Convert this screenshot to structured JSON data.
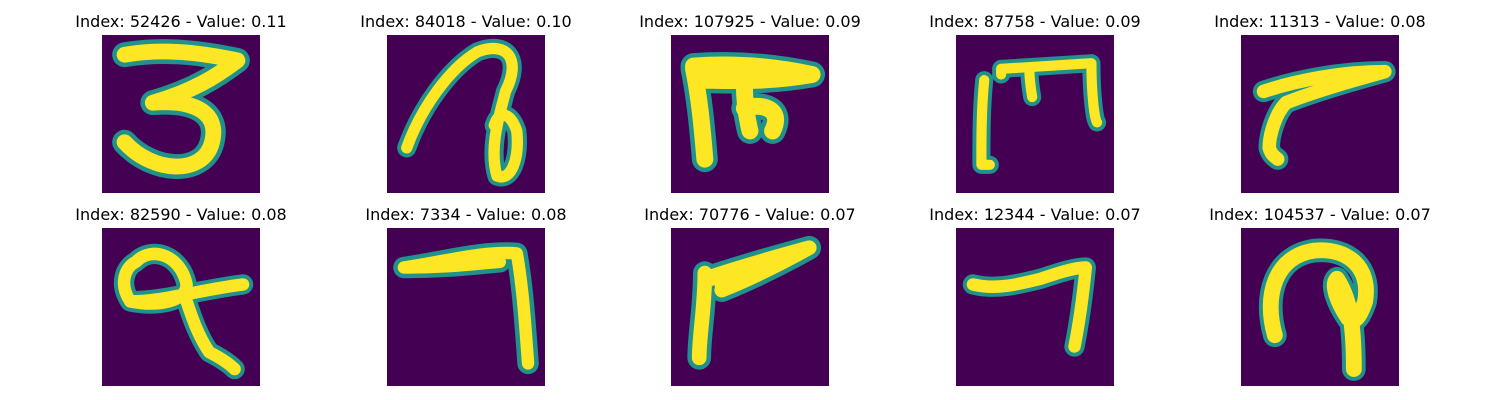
{
  "panels": [
    {
      "title": "Index: 52426 - Value: 0.11",
      "glyph": "3",
      "colors": {
        "background": "#440154",
        "edge": "#21918c",
        "stroke": "#fde725"
      }
    },
    {
      "title": "Index: 84018 - Value: 0.10",
      "glyph": "loop-arc"
    },
    {
      "title": "Index: 107925 - Value: 0.09",
      "glyph": "pi-shape"
    },
    {
      "title": "Index: 87758 - Value: 0.09",
      "glyph": "m-shape"
    },
    {
      "title": "Index: 11313 - Value: 0.08",
      "glyph": "slant-7"
    },
    {
      "title": "Index: 82590 - Value: 0.08",
      "glyph": "loop-q"
    },
    {
      "title": "Index: 7334 - Value: 0.08",
      "glyph": "seven"
    },
    {
      "title": "Index: 70776 - Value: 0.07",
      "glyph": "wedge"
    },
    {
      "title": "Index: 12344 - Value: 0.07",
      "glyph": "wave-7"
    },
    {
      "title": "Index: 104537 - Value: 0.07",
      "glyph": "p-loop"
    }
  ]
}
